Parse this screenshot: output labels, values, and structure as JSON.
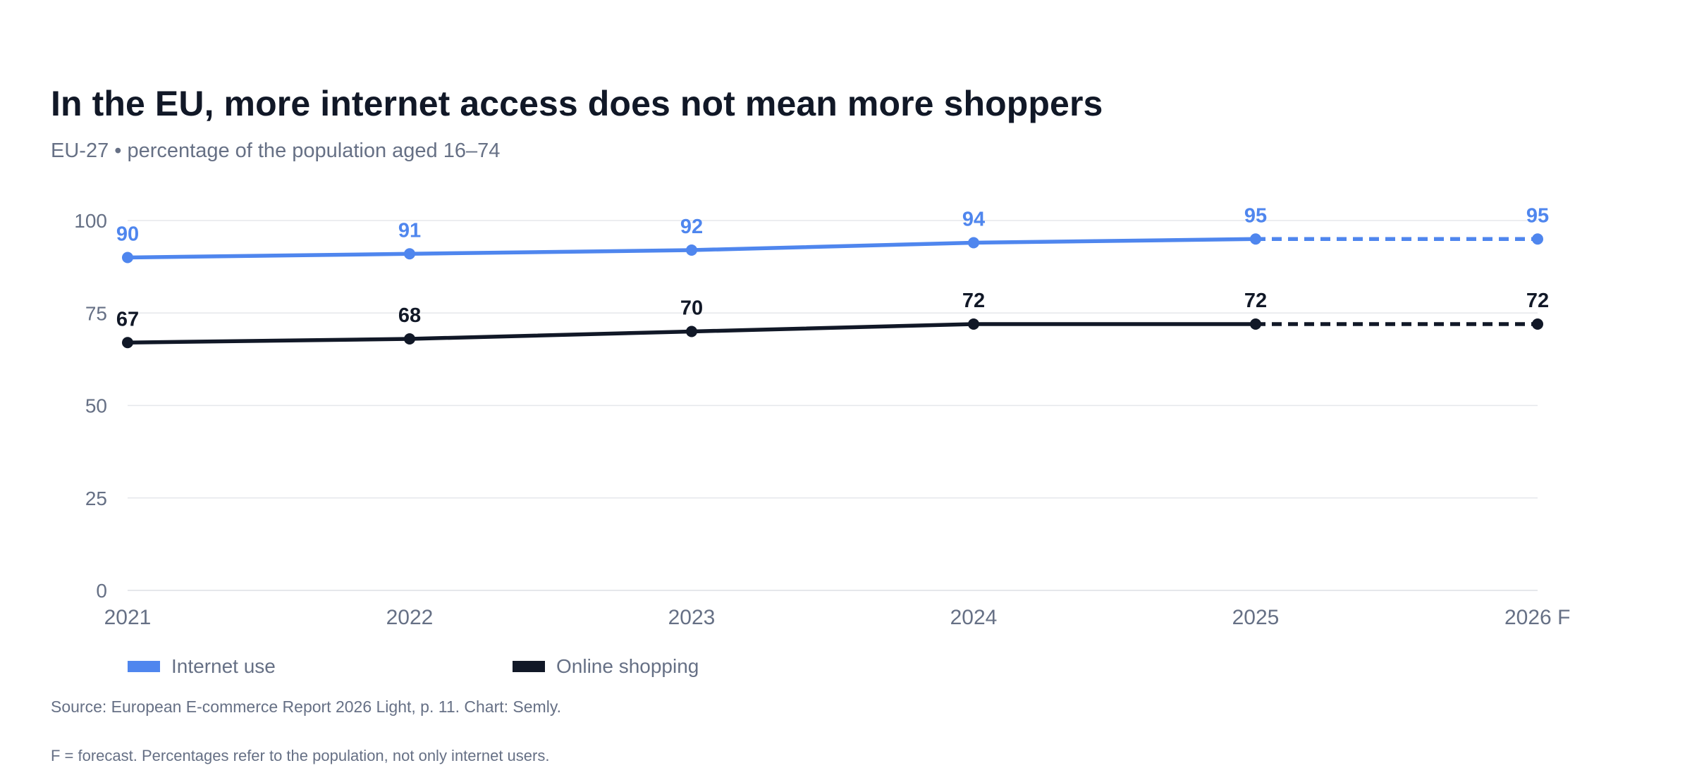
{
  "header": {
    "title": "In the EU, more internet access does not mean more shoppers",
    "subtitle": "EU-27 • percentage of the population aged 16–74"
  },
  "colors": {
    "internet": "#4f86ee",
    "shopping": "#111827",
    "axis_text": "#667085",
    "grid": "#e5e7eb"
  },
  "chart_data": {
    "type": "line",
    "categories": [
      "2021",
      "2022",
      "2023",
      "2024",
      "2025",
      "2026 F"
    ],
    "series": [
      {
        "name": "Internet use",
        "values": [
          90,
          91,
          92,
          94,
          95,
          95
        ],
        "color": "#4f86ee",
        "forecast_from_index": 4
      },
      {
        "name": "Online shopping",
        "values": [
          67,
          68,
          70,
          72,
          72,
          72
        ],
        "color": "#111827",
        "forecast_from_index": 4
      }
    ],
    "ylim": [
      0,
      100
    ],
    "yticks": [
      "0",
      "25",
      "50",
      "75",
      "100"
    ],
    "grid": true,
    "legend_position": "bottom-left",
    "data_labels": true,
    "xlabel": "",
    "ylabel": ""
  },
  "footer": {
    "source": "Source: European E-commerce Report 2026 Light, p. 11. Chart: Semly.",
    "note": "F = forecast. Percentages refer to the population, not only internet users."
  }
}
